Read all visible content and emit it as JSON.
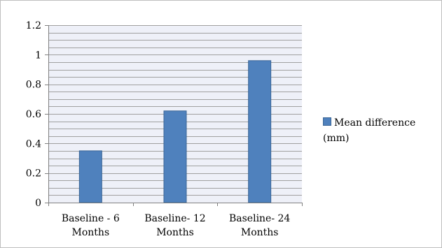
{
  "chart_data": {
    "type": "bar",
    "categories": [
      "Baseline - 6 Months",
      "Baseline- 12 Months",
      "Baseline- 24 Months"
    ],
    "series": [
      {
        "name": "Mean difference (mm)",
        "values": [
          0.35,
          0.62,
          0.96
        ]
      }
    ],
    "ylim": [
      0,
      1.2
    ],
    "yticks": [
      "0",
      "0.2",
      "0.4",
      "0.6",
      "0.8",
      "1",
      "1.2"
    ],
    "ytick_values": [
      0,
      0.2,
      0.4,
      0.6,
      0.8,
      1.0,
      1.2
    ],
    "minor_grid_step": 0.05,
    "grid": true,
    "legend_position": "right",
    "colors": {
      "bar": "#4f81bd",
      "bar_edge": "#3a6596",
      "grid": "#a0a0a0",
      "plot_bg": "#eef0f8"
    }
  }
}
